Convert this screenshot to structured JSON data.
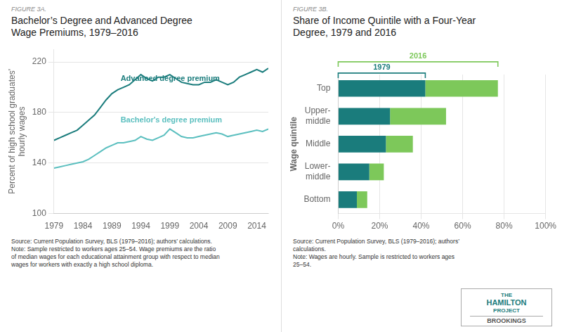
{
  "chart_data": [
    {
      "type": "line",
      "figure_label": "FIGURE 3A.",
      "title": "Bachelor’s Degree and Advanced Degree\nWage Premiums, 1979–2016",
      "x": [
        1979,
        1980,
        1981,
        1982,
        1983,
        1984,
        1985,
        1986,
        1987,
        1988,
        1989,
        1990,
        1991,
        1992,
        1993,
        1994,
        1995,
        1996,
        1997,
        1998,
        1999,
        2000,
        2001,
        2002,
        2003,
        2004,
        2005,
        2006,
        2007,
        2008,
        2009,
        2010,
        2011,
        2012,
        2013,
        2014,
        2015,
        2016
      ],
      "series": [
        {
          "name": "Advanced degree premium",
          "color": "#1a7c7c",
          "values": [
            158,
            160,
            162,
            164,
            166,
            170,
            174,
            178,
            184,
            190,
            195,
            198,
            200,
            202,
            206,
            210,
            207,
            205,
            208,
            208,
            210,
            207,
            204,
            203,
            202,
            202,
            204,
            204,
            206,
            204,
            202,
            204,
            208,
            210,
            212,
            214,
            212,
            215
          ]
        },
        {
          "name": "Bachelor's degree premium",
          "color": "#5bbfbf",
          "values": [
            136,
            137,
            138,
            139,
            140,
            141,
            143,
            146,
            149,
            152,
            154,
            156,
            156,
            157,
            158,
            161,
            159,
            158,
            160,
            162,
            167,
            164,
            161,
            160,
            160,
            161,
            162,
            163,
            164,
            163,
            161,
            162,
            163,
            164,
            165,
            166,
            165,
            167
          ]
        }
      ],
      "annotations": [
        {
          "text": "Advanced degree premium",
          "x": 1990.5,
          "y": 205,
          "color": "#1a7c7c"
        },
        {
          "text": "Bachelor's degree premium",
          "x": 1990.5,
          "y": 172,
          "color": "#5bbfbf"
        }
      ],
      "ylabel": "Percent of high school graduates'\nhourly wages",
      "xlim": [
        1979,
        2016
      ],
      "xticks": [
        1979,
        1984,
        1989,
        1994,
        1999,
        2004,
        2009,
        2014
      ],
      "ylim": [
        100,
        230
      ],
      "yticks": [
        100,
        140,
        180,
        220
      ],
      "grid": true,
      "note": "Source: Current Population Survey, BLS (1979–2016); authors’ calculations.\nNote: Sample restricted to workers ages 25–54. Wage premiums are the ratio\nof median wages for each educational attainment group with respect to median\nwages for workers with exactly a high school diploma."
    },
    {
      "type": "bar",
      "orientation": "horizontal",
      "stacked": true,
      "figure_label": "FIGURE 3B.",
      "title": "Share of Income Quintile with a Four-Year\nDegree, 1979 and 2016",
      "categories": [
        "Top",
        "Upper-\nmiddle",
        "Middle",
        "Lower-\nmiddle",
        "Bottom"
      ],
      "series": [
        {
          "name": "1979",
          "color": "#1a7c7c",
          "values": [
            42,
            25,
            23,
            15,
            9
          ]
        },
        {
          "name": "2016",
          "color": "#7dc85a",
          "values": [
            35,
            27,
            13,
            7,
            5
          ]
        }
      ],
      "annotations": [
        {
          "text": "2016",
          "from": 0,
          "to": 77,
          "color": "#7dc85a"
        },
        {
          "text": "1979",
          "from": 0,
          "to": 42,
          "color": "#1a7c7c"
        }
      ],
      "ylabel": "Wage quintile",
      "xlim": [
        0,
        100
      ],
      "xticks": [
        {
          "value": 0,
          "label": "0%"
        },
        {
          "value": 20,
          "label": "20%"
        },
        {
          "value": 40,
          "label": "40%"
        },
        {
          "value": 60,
          "label": "60%"
        },
        {
          "value": 80,
          "label": "80%"
        },
        {
          "value": 100,
          "label": "100%"
        }
      ],
      "grid": true,
      "note": "Source: Current Population Survey, BLS (1979–2016); authors’\ncalculations.\nNote: Wages are hourly. Sample is restricted to workers ages\n25–54."
    }
  ],
  "logo": {
    "lines": [
      "THE",
      "HAMILTON",
      "PROJECT"
    ],
    "footer": "BROOKINGS",
    "color": "#1a7c7c"
  }
}
